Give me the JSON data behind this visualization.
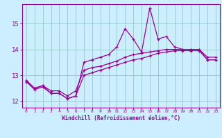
{
  "hours": [
    0,
    1,
    2,
    3,
    4,
    5,
    6,
    7,
    8,
    9,
    10,
    11,
    12,
    13,
    14,
    15,
    16,
    17,
    18,
    19,
    20,
    21,
    22,
    23
  ],
  "line1": [
    12.8,
    12.5,
    12.6,
    12.3,
    12.3,
    12.1,
    12.2,
    13.5,
    13.6,
    13.7,
    13.8,
    14.1,
    14.8,
    14.4,
    13.9,
    15.6,
    14.4,
    14.5,
    14.1,
    14.0,
    14.0,
    14.0,
    13.6,
    13.6
  ],
  "line2": [
    12.8,
    12.5,
    12.6,
    12.4,
    12.4,
    12.2,
    12.4,
    13.2,
    13.3,
    13.35,
    13.45,
    13.55,
    13.7,
    13.8,
    13.85,
    13.9,
    13.95,
    14.0,
    14.0,
    14.0,
    14.0,
    14.0,
    13.7,
    13.7
  ],
  "line3": [
    12.75,
    12.45,
    12.55,
    12.3,
    12.3,
    12.1,
    12.2,
    13.0,
    13.1,
    13.2,
    13.3,
    13.4,
    13.5,
    13.6,
    13.65,
    13.75,
    13.85,
    13.9,
    13.95,
    13.95,
    13.95,
    13.95,
    13.6,
    13.6
  ],
  "line_color": "#990099",
  "bg_color": "#cceeff",
  "grid_color": "#99cccc",
  "xlabel": "Windchill (Refroidissement éolien,°C)",
  "ylim": [
    11.75,
    15.75
  ],
  "yticks": [
    12,
    13,
    14,
    15
  ],
  "xlim": [
    -0.5,
    23.5
  ],
  "xticks": [
    0,
    1,
    2,
    3,
    4,
    5,
    6,
    7,
    8,
    9,
    10,
    11,
    12,
    13,
    14,
    15,
    16,
    17,
    18,
    19,
    20,
    21,
    22,
    23
  ],
  "marker": "+"
}
